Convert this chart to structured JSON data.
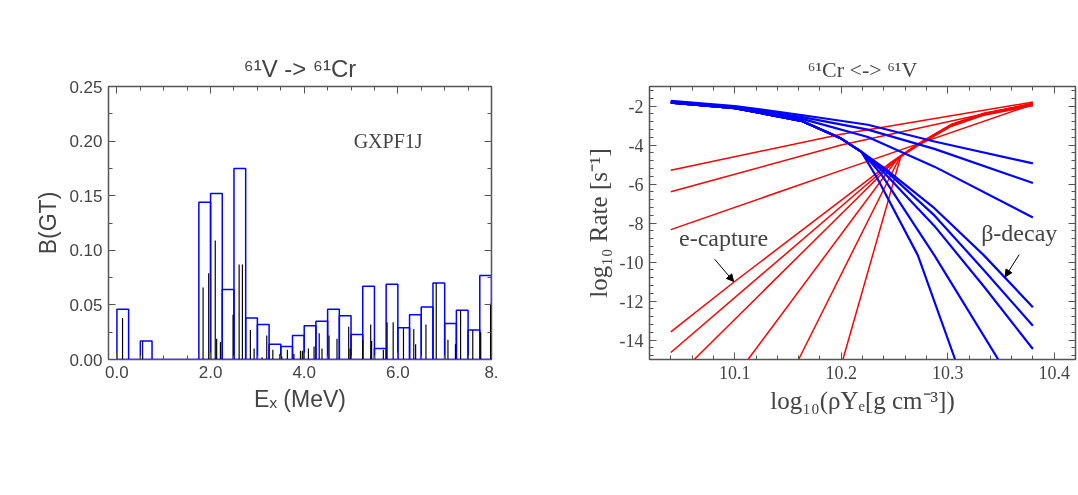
{
  "chart_data": [
    {
      "type": "histogram",
      "title": "⁶¹V -> ⁶¹Cr",
      "xlabel": "Eₓ (MeV)",
      "ylabel": "B(GT)",
      "annotations": [
        "GXPF1J"
      ],
      "bins": [
        0,
        0.25,
        0.5,
        0.75,
        1.0,
        1.25,
        1.5,
        1.75,
        2.0,
        2.25,
        2.5,
        2.75,
        3.0,
        3.25,
        3.5,
        3.75,
        4.0,
        4.25,
        4.5,
        4.75,
        5.0,
        5.25,
        5.5,
        5.75,
        6.0,
        6.25,
        6.5,
        6.75,
        7.0,
        7.25,
        7.5,
        7.75,
        8.0
      ],
      "values": [
        0.046,
        0,
        0.017,
        0,
        0,
        0,
        0,
        0.144,
        0.152,
        0.064,
        0.175,
        0.038,
        0.032,
        0.014,
        0.012,
        0.022,
        0.031,
        0.035,
        0.046,
        0.04,
        0.023,
        0.067,
        0.01,
        0.069,
        0.029,
        0.041,
        0.048,
        0.07,
        0.033,
        0.045,
        0.027,
        0.077
      ],
      "color": "#0000ff",
      "series": [
        {
          "type": "bar",
          "color": "#000000",
          "x": [
            0.12,
            0.55,
            1.84,
            1.96,
            2.1,
            2.13,
            2.21,
            2.48,
            2.61,
            2.68,
            2.85,
            2.93,
            3.1,
            3.2,
            3.33,
            3.48,
            3.52,
            3.64,
            3.78,
            3.92,
            3.96,
            4.09,
            4.21,
            4.32,
            4.38,
            4.53,
            4.7,
            4.95,
            4.98,
            5.25,
            5.42,
            5.44,
            5.69,
            5.77,
            5.9,
            6.12,
            6.34,
            6.38,
            6.6,
            6.82,
            7.07,
            7.23,
            7.34,
            7.6,
            7.77,
            7.98
          ],
          "values": [
            0.038,
            0.017,
            0.066,
            0.079,
            0.109,
            0.019,
            0.016,
            0.041,
            0.087,
            0.087,
            0.027,
            0.01,
            0.002,
            0.022,
            0.009,
            0.005,
            0.003,
            0.009,
            0.005,
            0.008,
            0.008,
            0.01,
            0.012,
            0.024,
            0.01,
            0.022,
            0.019,
            0.03,
            0.01,
            0.018,
            0.032,
            0.017,
            0.009,
            0.034,
            0.034,
            0.029,
            0.028,
            0.014,
            0.032,
            0.07,
            0.018,
            0.014,
            0.045,
            0.027,
            0.025,
            0.051
          ]
        }
      ],
      "xlim": [
        -0.18,
        8.0
      ],
      "ylim": [
        0,
        0.25
      ],
      "xticks": [
        {
          "value": 0,
          "label": "0.0"
        },
        {
          "value": 2,
          "label": "2.0"
        },
        {
          "value": 4,
          "label": "4.0"
        },
        {
          "value": 6,
          "label": "6.0"
        },
        {
          "value": 8,
          "label": "8."
        }
      ],
      "yticks": [
        {
          "value": 0,
          "label": "0.00"
        },
        {
          "value": 0.05,
          "label": "0.05"
        },
        {
          "value": 0.1,
          "label": "0.10"
        },
        {
          "value": 0.15,
          "label": "0.15"
        },
        {
          "value": 0.2,
          "label": "0.20"
        },
        {
          "value": 0.25,
          "label": "0.25"
        }
      ],
      "grid": false
    },
    {
      "type": "line",
      "title": "⁶¹Cr <-> ⁶¹V",
      "xlabel": "log₁₀(ρYₑ[g cm⁻³])",
      "ylabel": "log₁₀ Rate [s⁻¹]",
      "annotations": [
        {
          "text": "e-capture",
          "x": 10.099,
          "y": -11.0
        },
        {
          "text": "β-decay",
          "x": 10.354,
          "y": -10.76
        }
      ],
      "series": [
        {
          "color": "#ff0000",
          "x": [
            10.04,
            10.2,
            10.38
          ],
          "values": [
            -5.29,
            -3.45,
            -1.8
          ]
        },
        {
          "color": "#ff0000",
          "x": [
            10.04,
            10.2,
            10.38
          ],
          "values": [
            -6.4,
            -4.0,
            -1.86
          ]
        },
        {
          "color": "#ff0000",
          "x": [
            10.04,
            10.2,
            10.38
          ],
          "values": [
            -8.34,
            -5.3,
            -1.92
          ]
        },
        {
          "color": "#ff0000",
          "x": [
            10.04,
            10.1,
            10.247,
            10.272,
            10.303,
            10.334,
            10.38
          ],
          "values": [
            -13.58,
            -11.0,
            -4.88,
            -3.94,
            -2.95,
            -2.37,
            -1.88
          ]
        },
        {
          "color": "#ff0000",
          "x": [
            10.04,
            10.25,
            10.272,
            10.303,
            10.334,
            10.38
          ],
          "values": [
            -14.64,
            -4.81,
            -3.96,
            -2.97,
            -2.39,
            -1.9
          ]
        },
        {
          "color": "#ff0000",
          "x": [
            10.062,
            10.252,
            10.272,
            10.303,
            10.334,
            10.38
          ],
          "values": [
            -15.0,
            -4.73,
            -3.97,
            -2.99,
            -2.41,
            -1.92
          ]
        },
        {
          "color": "#ff0000",
          "x": [
            10.1125,
            10.253,
            10.272,
            10.303,
            10.334,
            10.38
          ],
          "values": [
            -15.0,
            -4.69,
            -3.99,
            -3.01,
            -2.43,
            -1.94
          ]
        },
        {
          "color": "#ff0000",
          "x": [
            10.16,
            10.255,
            10.272,
            10.303,
            10.334,
            10.38
          ],
          "values": [
            -15.0,
            -4.63,
            -4.01,
            -3.03,
            -2.45,
            -1.96
          ]
        },
        {
          "color": "#ff0000",
          "x": [
            10.2016,
            10.256,
            10.272,
            10.303,
            10.334,
            10.38
          ],
          "values": [
            -15.0,
            -4.58,
            -4.03,
            -3.05,
            -2.47,
            -1.98
          ]
        },
        {
          "color": "#0000ff",
          "x": [
            10.04,
            10.1,
            10.1625,
            10.225,
            10.2875,
            10.38
          ],
          "values": [
            -1.74,
            -2.0,
            -2.46,
            -2.96,
            -3.82,
            -4.94
          ]
        },
        {
          "color": "#0000ff",
          "x": [
            10.04,
            10.1,
            10.1625,
            10.225,
            10.2875,
            10.38
          ],
          "values": [
            -1.77,
            -2.05,
            -2.56,
            -3.21,
            -4.2,
            -5.95
          ]
        },
        {
          "color": "#0000ff",
          "x": [
            10.04,
            10.1,
            10.1625,
            10.225,
            10.2875,
            10.38
          ],
          "values": [
            -1.8,
            -2.08,
            -2.65,
            -3.59,
            -5.11,
            -7.72
          ]
        },
        {
          "color": "#0000ff",
          "x": [
            10.04,
            10.1,
            10.1625,
            10.2,
            10.219,
            10.2406,
            10.2875,
            10.334,
            10.38
          ],
          "values": [
            -1.83,
            -2.11,
            -2.76,
            -3.67,
            -4.35,
            -5.19,
            -7.24,
            -9.66,
            -12.32
          ]
        },
        {
          "color": "#0000ff",
          "x": [
            10.04,
            10.1,
            10.1625,
            10.2,
            10.219,
            10.2406,
            10.2875,
            10.334,
            10.38
          ],
          "values": [
            -1.83,
            -2.11,
            -2.76,
            -3.67,
            -4.35,
            -5.26,
            -7.61,
            -10.42,
            -13.27
          ]
        },
        {
          "color": "#0000ff",
          "x": [
            10.04,
            10.1,
            10.1625,
            10.2,
            10.219,
            10.239,
            10.2875,
            10.334,
            10.38
          ],
          "values": [
            -1.83,
            -2.11,
            -2.76,
            -3.67,
            -4.35,
            -5.34,
            -8.15,
            -11.26,
            -14.46
          ]
        },
        {
          "color": "#0000ff",
          "x": [
            10.04,
            10.1,
            10.1625,
            10.2,
            10.219,
            10.2375,
            10.2875,
            10.3475
          ],
          "values": [
            -1.83,
            -2.11,
            -2.76,
            -3.67,
            -4.35,
            -5.49,
            -9.66,
            -15.0
          ]
        },
        {
          "color": "#0000ff",
          "x": [
            10.04,
            10.1,
            10.1625,
            10.2,
            10.219,
            10.234,
            10.272,
            10.307
          ],
          "values": [
            -1.83,
            -2.11,
            -2.76,
            -3.67,
            -4.35,
            -5.72,
            -9.66,
            -15.0
          ]
        }
      ],
      "xlim": [
        10.02,
        10.42
      ],
      "ylim": [
        -15,
        -1
      ],
      "xticks": [
        10.1,
        10.2,
        10.3,
        10.4
      ],
      "yticks": [
        -14,
        -12,
        -10,
        -8,
        -6,
        -4,
        -2
      ],
      "grid": false,
      "marker": "none",
      "line_style": "solid"
    }
  ]
}
